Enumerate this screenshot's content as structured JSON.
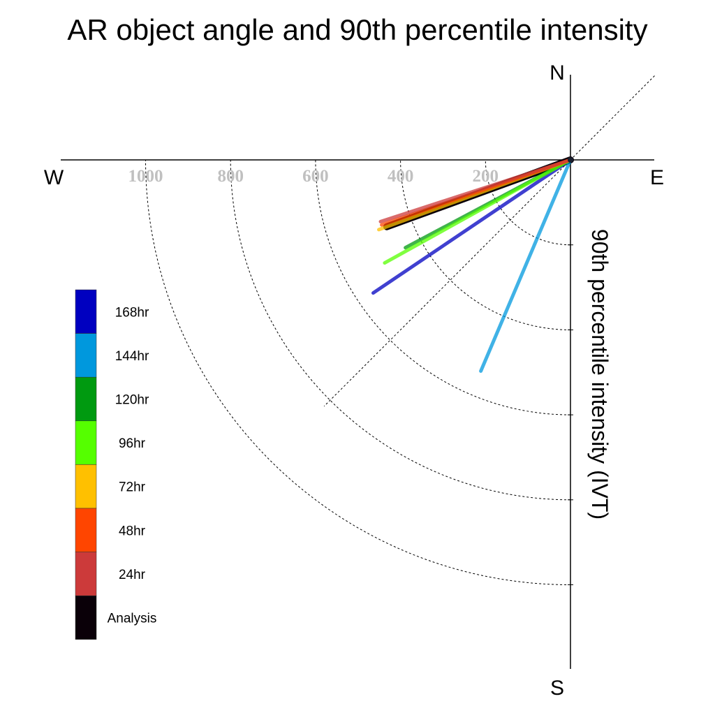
{
  "chart_data": {
    "type": "polar-line",
    "title": "AR object angle and 90th percentile intensity",
    "radial_label": "90th percentile intensity (IVT)",
    "compass": {
      "north": "N",
      "east": "E",
      "south": "S",
      "west": "W"
    },
    "radial_range": [
      0,
      1200
    ],
    "radial_ticks": [
      200,
      400,
      600,
      800,
      1000
    ],
    "radial_tick_labels": [
      "200",
      "400",
      "600",
      "800",
      "1000"
    ],
    "angle_unit": "degrees clockwise from north",
    "grid": true,
    "legend_position": "left",
    "series": [
      {
        "name": "Analysis",
        "color": "#0a0008",
        "angle": 250,
        "value": 460
      },
      {
        "name": "24hr",
        "color": "#cc3a3a",
        "angle": 252,
        "value": 470
      },
      {
        "name": "48hr",
        "color": "#ff4500",
        "angle": 251,
        "value": 470
      },
      {
        "name": "72hr",
        "color": "#ffc000",
        "angle": 250,
        "value": 480
      },
      {
        "name": "96hr",
        "color": "#55ff00",
        "angle": 241,
        "value": 500
      },
      {
        "name": "120hr",
        "color": "#009a10",
        "angle": 242,
        "value": 440
      },
      {
        "name": "144hr",
        "color": "#0098dd",
        "angle": 203,
        "value": 540
      },
      {
        "name": "168hr",
        "color": "#0000c0",
        "angle": 236,
        "value": 560
      }
    ],
    "legend_order": [
      "168hr",
      "144hr",
      "120hr",
      "96hr",
      "72hr",
      "48hr",
      "24hr",
      "Analysis"
    ]
  }
}
